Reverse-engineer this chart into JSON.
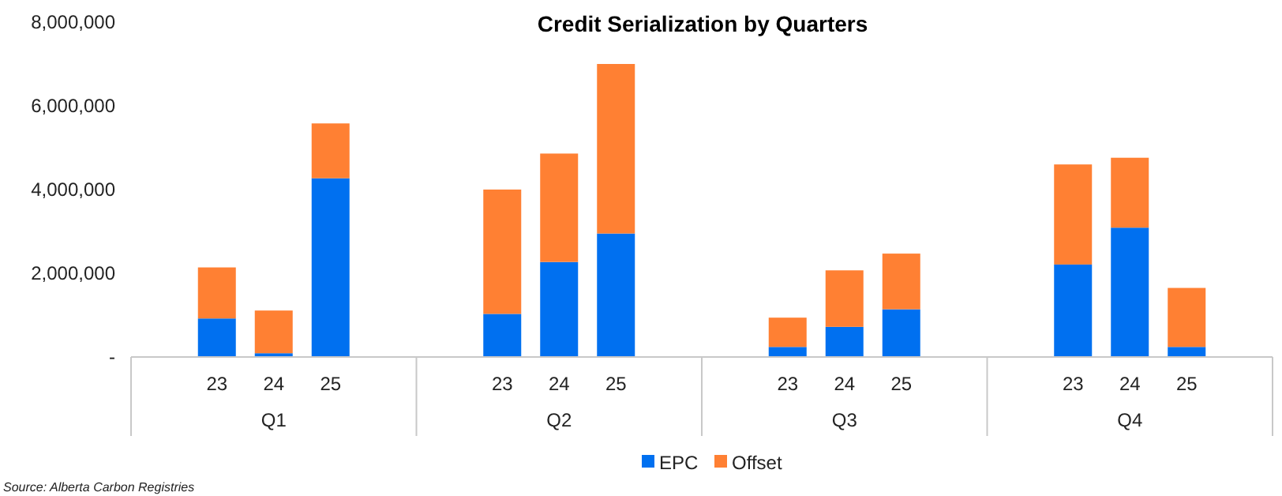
{
  "chart_data": {
    "type": "bar",
    "title": "Credit Serialization by Quarters",
    "stacked": true,
    "categories": [
      "23",
      "24",
      "25",
      "23",
      "24",
      "25",
      "23",
      "24",
      "25",
      "23",
      "24",
      "25"
    ],
    "series": [
      {
        "name": "EPC",
        "color": "#0070f0",
        "values": [
          920000,
          90000,
          4270000,
          1030000,
          2270000,
          2950000,
          240000,
          720000,
          1140000,
          2210000,
          3090000,
          240000
        ]
      },
      {
        "name": "Offset",
        "color": "#ff8033",
        "values": [
          1220000,
          1020000,
          1310000,
          2970000,
          2590000,
          4050000,
          700000,
          1350000,
          1330000,
          2390000,
          1670000,
          1410000
        ]
      }
    ],
    "ylim": [
      0,
      8000000
    ],
    "yticks": [
      {
        "value": 0,
        "label": "-"
      },
      {
        "value": 2000000,
        "label": "2,000,000"
      },
      {
        "value": 4000000,
        "label": "4,000,000"
      },
      {
        "value": 6000000,
        "label": "6,000,000"
      },
      {
        "value": 8000000,
        "label": "8,000,000"
      }
    ],
    "legend": "bottom",
    "annotations": [
      "Q1",
      "Q2",
      "Q3",
      "Q4",
      "Source: Alberta Carbon Registries"
    ]
  }
}
